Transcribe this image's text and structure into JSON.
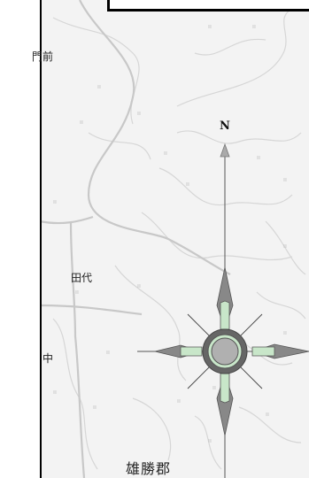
{
  "map": {
    "place_names": {
      "top_left": "門前",
      "middle": "田代",
      "left_edge": "中",
      "bottom": "雄勝郡"
    },
    "compass": {
      "north_label": "N",
      "colors": {
        "ring_outer": "#666666",
        "ring_inner": "#b0b0b0",
        "arrow_dark": "#888888",
        "arrow_light": "#c8e6c9"
      }
    },
    "colors": {
      "land": "#f3f3f3",
      "contour": "#d6d6d6",
      "road": "#c8c8c8",
      "frame": "#000000"
    }
  }
}
